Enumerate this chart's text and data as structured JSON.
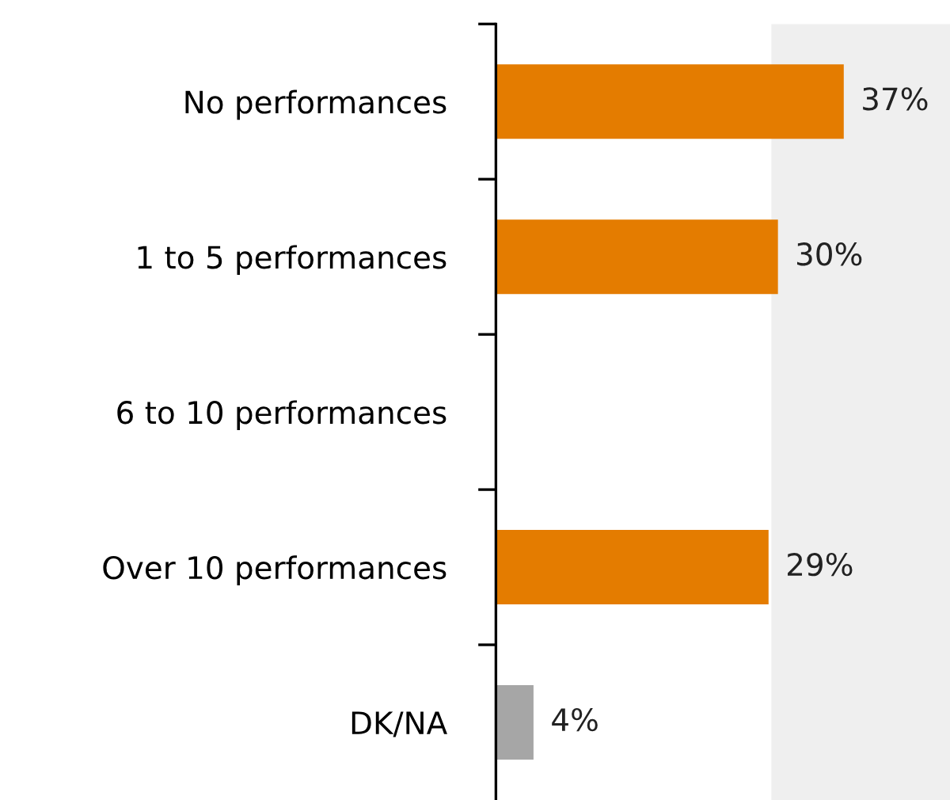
{
  "chart_data": {
    "type": "bar",
    "orientation": "horizontal",
    "categories": [
      "No performances",
      "1 to 5 performances",
      "6 to 10 performances",
      "Over 10 performances",
      "DK/NA"
    ],
    "values": [
      37,
      30,
      null,
      29,
      4
    ],
    "colors": [
      "#e47c00",
      "#e47c00",
      "#e47c00",
      "#e47c00",
      "#a6a6a6"
    ],
    "value_labels": [
      "37%",
      "30%",
      null,
      "29%",
      "4%"
    ],
    "xlim": [
      0,
      48.3
    ],
    "bands": [
      {
        "axis": "x",
        "from": 29.3,
        "to": 48.3,
        "color": "#efefef"
      }
    ],
    "tick_labels": "y",
    "grid": false,
    "legend": false
  }
}
